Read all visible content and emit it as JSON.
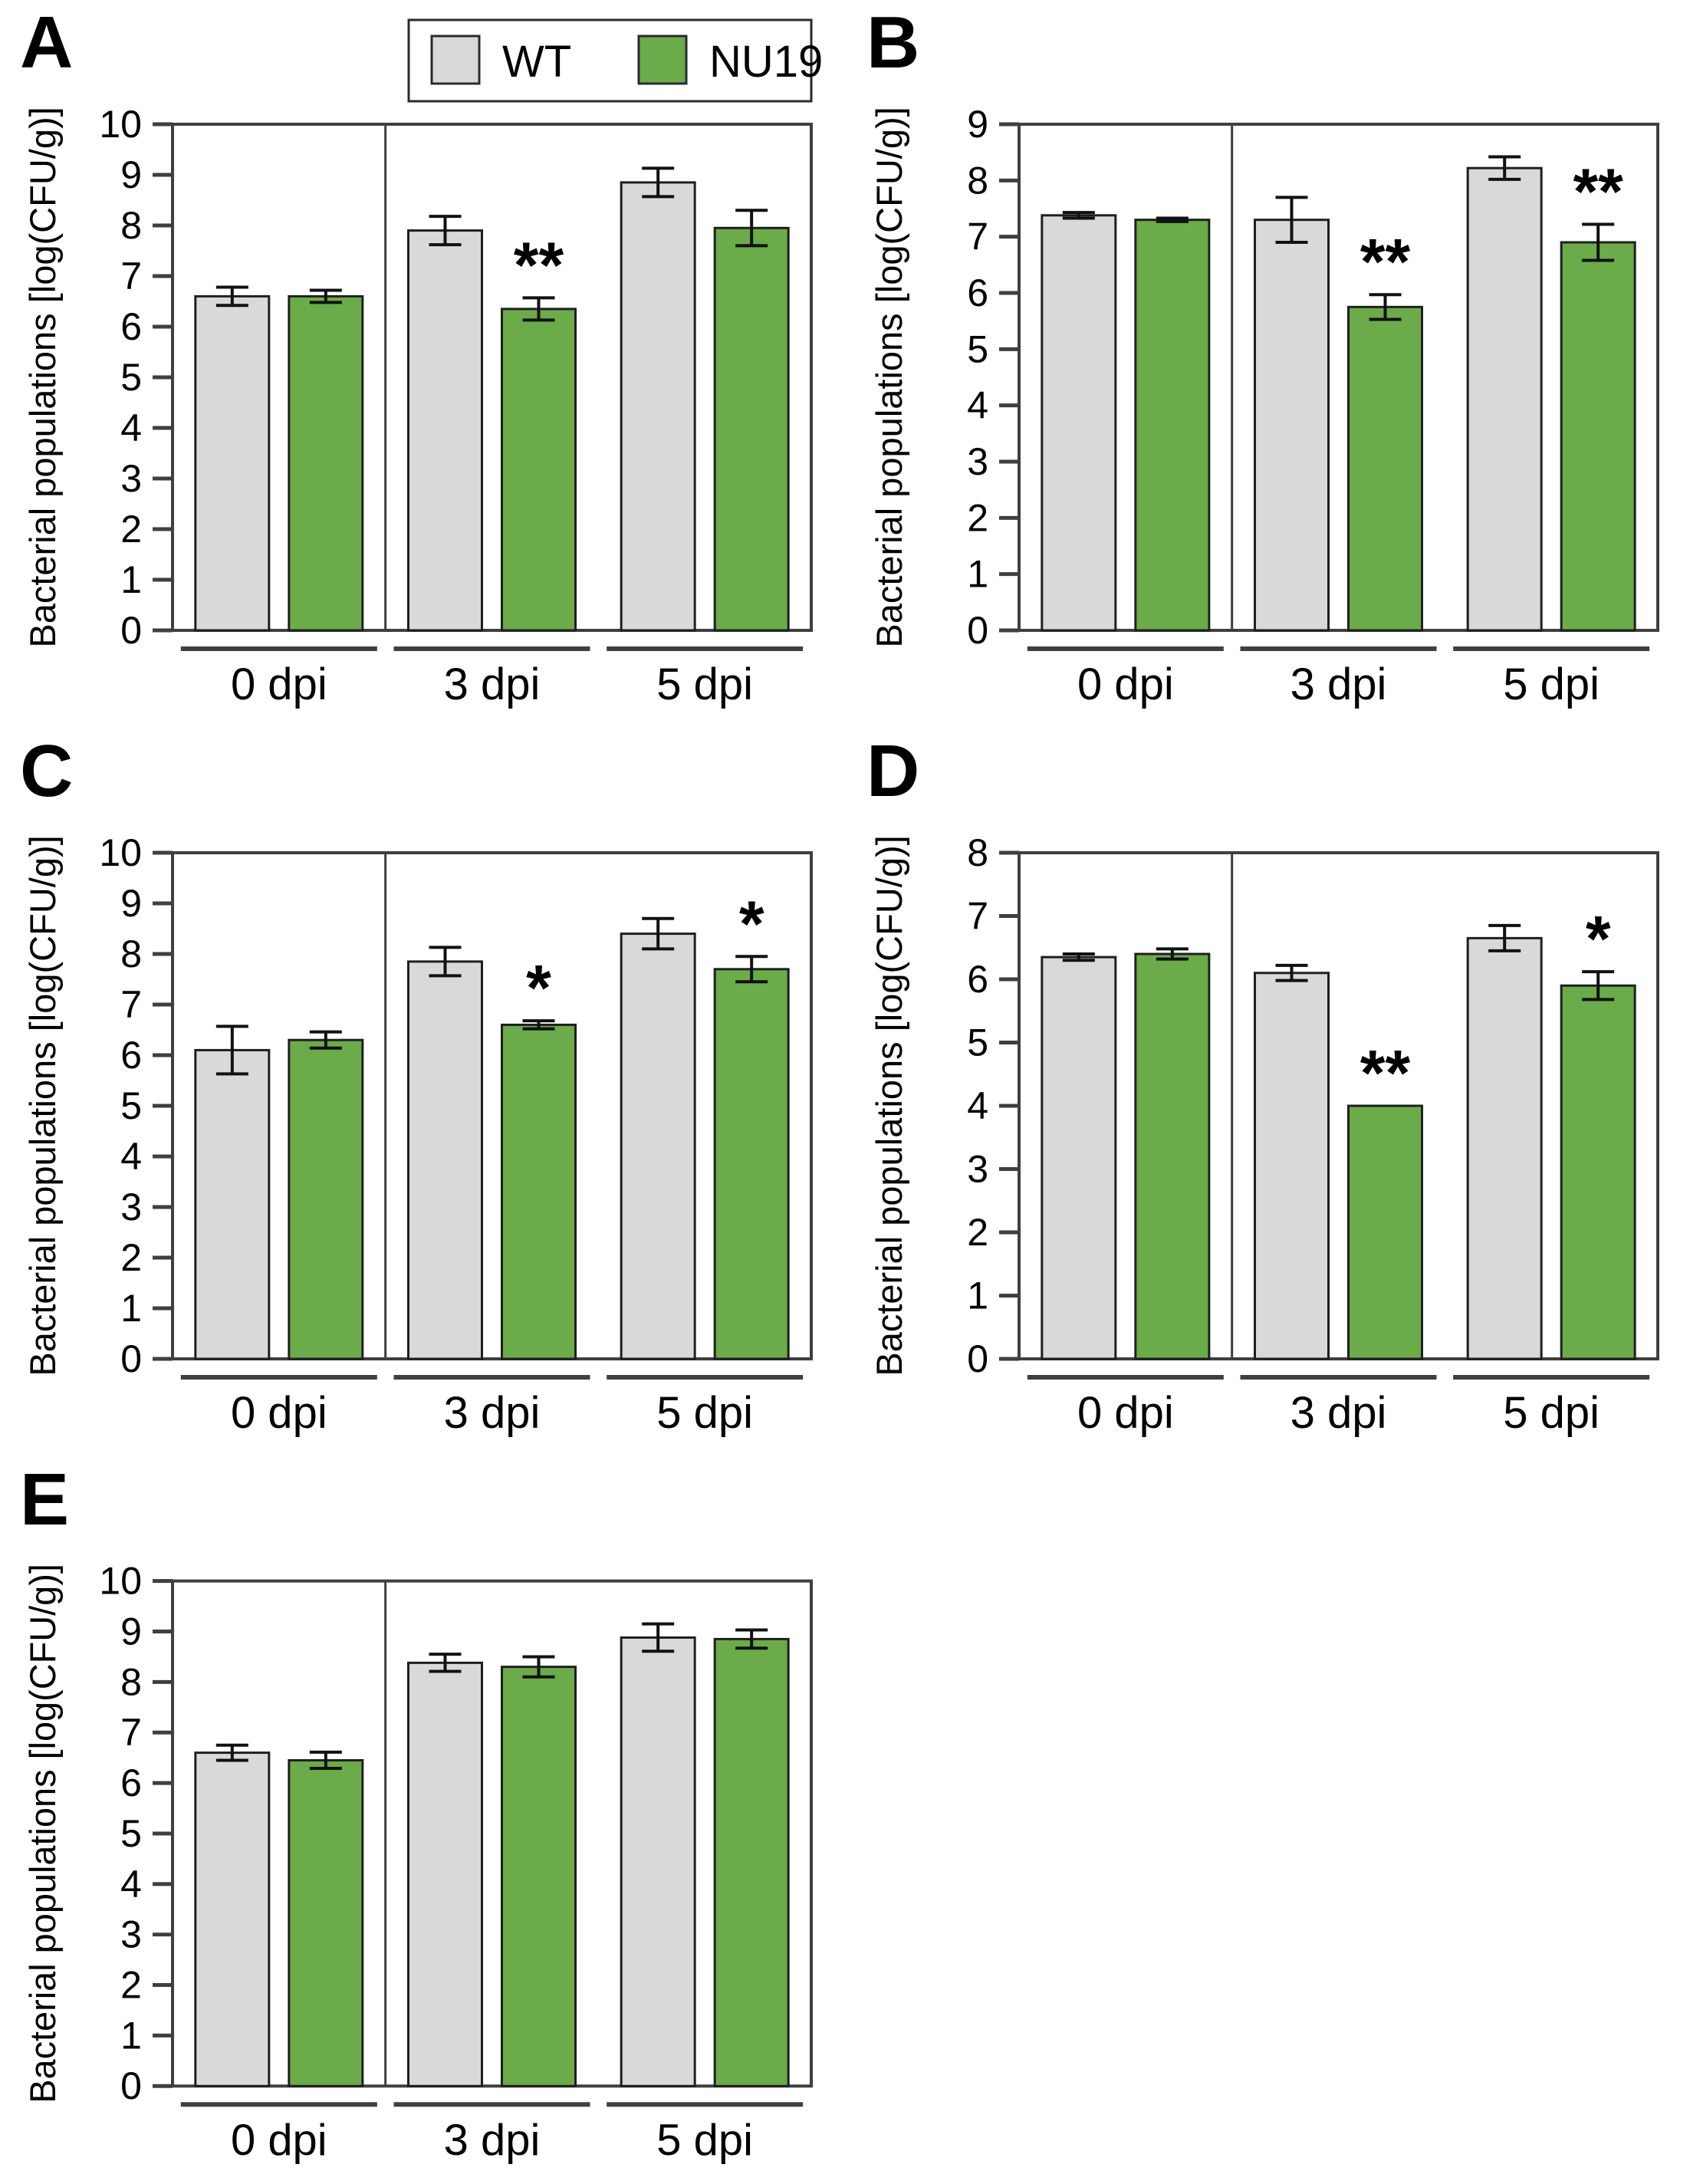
{
  "figure": {
    "description": "Five bar chart panels (A-E) comparing bacterial populations of WT and NU19 strains at 0, 3 and 5 days post inoculation",
    "theme": {
      "axis_color": "#3f3f3f",
      "bar_border_color": "#1f1f1f",
      "errorbar_color": "#111111",
      "wt_color": "#d9d9d9",
      "nu19_color": "#6bab4a",
      "background": "#ffffff",
      "text_color": "#000000"
    },
    "legend": {
      "items": [
        {
          "label": "WT",
          "color": "#d9d9d9"
        },
        {
          "label": "NU19",
          "color": "#6bab4a"
        }
      ],
      "position": "top-right-of-panel-A"
    }
  },
  "chart_data": [
    {
      "panel": "A",
      "type": "bar",
      "categories": [
        "0 dpi",
        "3 dpi",
        "5 dpi"
      ],
      "ylabel": "Bacterial populations [log(CFU/g)]",
      "ylim": [
        0,
        10
      ],
      "ytick_step": 1,
      "grid": false,
      "show_legend": true,
      "group_divider_after_category": "0 dpi",
      "series": [
        {
          "name": "WT",
          "color": "#d9d9d9",
          "values": [
            6.6,
            7.9,
            8.85
          ],
          "errors": [
            0.18,
            0.28,
            0.28
          ],
          "sig": [
            "",
            "",
            ""
          ]
        },
        {
          "name": "NU19",
          "color": "#6bab4a",
          "values": [
            6.6,
            6.35,
            7.95
          ],
          "errors": [
            0.12,
            0.22,
            0.35
          ],
          "sig": [
            "",
            "**",
            ""
          ]
        }
      ]
    },
    {
      "panel": "B",
      "type": "bar",
      "categories": [
        "0 dpi",
        "3 dpi",
        "5 dpi"
      ],
      "ylabel": "Bacterial populations [log(CFU/g)]",
      "ylim": [
        0,
        9
      ],
      "ytick_step": 1,
      "grid": false,
      "show_legend": false,
      "group_divider_after_category": "0 dpi",
      "series": [
        {
          "name": "WT",
          "color": "#d9d9d9",
          "values": [
            7.38,
            7.3,
            8.22
          ],
          "errors": [
            0.05,
            0.4,
            0.2
          ],
          "sig": [
            "",
            "",
            ""
          ]
        },
        {
          "name": "NU19",
          "color": "#6bab4a",
          "values": [
            7.3,
            5.75,
            6.9
          ],
          "errors": [
            0.03,
            0.22,
            0.32
          ],
          "sig": [
            "",
            "**",
            "**"
          ]
        }
      ]
    },
    {
      "panel": "C",
      "type": "bar",
      "categories": [
        "0 dpi",
        "3 dpi",
        "5 dpi"
      ],
      "ylabel": "Bacterial populations [log(CFU/g)]",
      "ylim": [
        0,
        10
      ],
      "ytick_step": 1,
      "grid": false,
      "show_legend": false,
      "group_divider_after_category": "0 dpi",
      "series": [
        {
          "name": "WT",
          "color": "#d9d9d9",
          "values": [
            6.1,
            7.85,
            8.4
          ],
          "errors": [
            0.47,
            0.28,
            0.3
          ],
          "sig": [
            "",
            "",
            ""
          ]
        },
        {
          "name": "NU19",
          "color": "#6bab4a",
          "values": [
            6.3,
            6.6,
            7.7
          ],
          "errors": [
            0.16,
            0.08,
            0.25
          ],
          "sig": [
            "",
            "*",
            "*"
          ]
        }
      ]
    },
    {
      "panel": "D",
      "type": "bar",
      "categories": [
        "0 dpi",
        "3 dpi",
        "5 dpi"
      ],
      "ylabel": "Bacterial populations [log(CFU/g)]",
      "ylim": [
        0,
        8
      ],
      "ytick_step": 1,
      "grid": false,
      "show_legend": false,
      "group_divider_after_category": "0 dpi",
      "series": [
        {
          "name": "WT",
          "color": "#d9d9d9",
          "values": [
            6.35,
            6.1,
            6.65
          ],
          "errors": [
            0.05,
            0.12,
            0.2
          ],
          "sig": [
            "",
            "",
            ""
          ]
        },
        {
          "name": "NU19",
          "color": "#6bab4a",
          "values": [
            6.4,
            4.0,
            5.9
          ],
          "errors": [
            0.08,
            0,
            0.22
          ],
          "sig": [
            "",
            "**",
            "*"
          ]
        }
      ]
    },
    {
      "panel": "E",
      "type": "bar",
      "categories": [
        "0 dpi",
        "3 dpi",
        "5 dpi"
      ],
      "ylabel": "Bacterial populations [log(CFU/g)]",
      "ylim": [
        0,
        10
      ],
      "ytick_step": 1,
      "grid": false,
      "show_legend": false,
      "group_divider_after_category": "0 dpi",
      "series": [
        {
          "name": "WT",
          "color": "#d9d9d9",
          "values": [
            6.6,
            8.38,
            8.88
          ],
          "errors": [
            0.15,
            0.17,
            0.27
          ],
          "sig": [
            "",
            "",
            ""
          ]
        },
        {
          "name": "NU19",
          "color": "#6bab4a",
          "values": [
            6.45,
            8.3,
            8.85
          ],
          "errors": [
            0.16,
            0.2,
            0.18
          ],
          "sig": [
            "",
            "",
            ""
          ]
        }
      ]
    }
  ]
}
